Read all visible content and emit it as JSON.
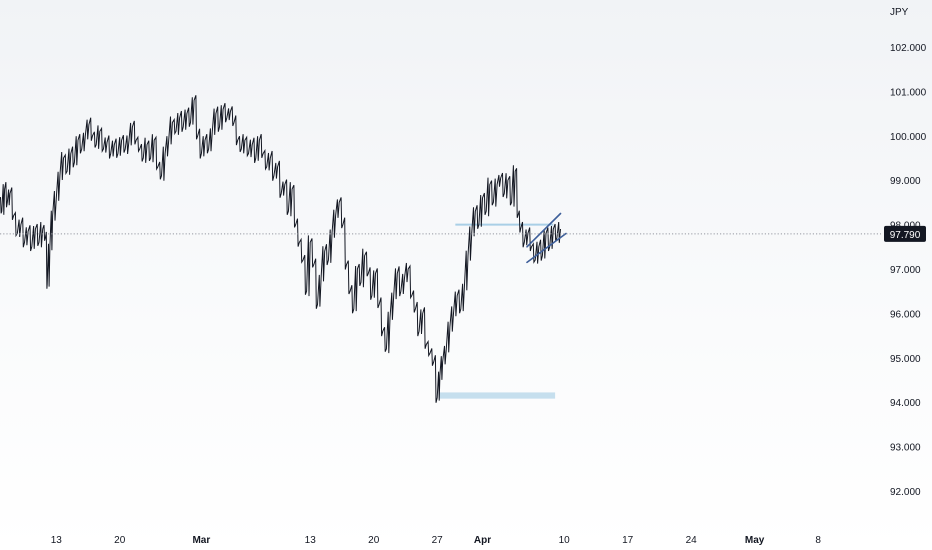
{
  "chart_data": {
    "type": "line",
    "currency": "JPY",
    "y_ticks": [
      "102.000",
      "101.000",
      "100.000",
      "99.000",
      "98.000",
      "97.000",
      "96.000",
      "95.000",
      "94.000",
      "93.000",
      "92.000"
    ],
    "ylim": [
      91.2,
      103.6
    ],
    "x_ticks": [
      {
        "label": "13",
        "day": 5
      },
      {
        "label": "20",
        "day": 12
      },
      {
        "label": "Mar",
        "day": 21,
        "bold": true
      },
      {
        "label": "13",
        "day": 33
      },
      {
        "label": "20",
        "day": 40
      },
      {
        "label": "27",
        "day": 47
      },
      {
        "label": "Apr",
        "day": 52,
        "bold": true
      },
      {
        "label": "10",
        "day": 61
      },
      {
        "label": "17",
        "day": 68
      },
      {
        "label": "24",
        "day": 75
      },
      {
        "label": "May",
        "day": 82,
        "bold": true
      },
      {
        "label": "8",
        "day": 89
      }
    ],
    "xlim": [
      -2.5,
      91.5
    ],
    "current_price": "97.790",
    "current_value": 97.79,
    "series": [
      {
        "points": [
          [
            -2.5,
            96.6
          ],
          [
            -2.2,
            96.3
          ],
          [
            -2.0,
            96.05
          ],
          [
            -1.8,
            97.2
          ],
          [
            -1.6,
            97.9
          ],
          [
            -1.3,
            98.55
          ],
          [
            -1.0,
            98.3
          ],
          [
            -0.7,
            98.8
          ],
          [
            -0.4,
            98.5
          ],
          [
            -0.1,
            98.7
          ],
          [
            0.3,
            98.2
          ],
          [
            0.7,
            97.8
          ],
          [
            1.1,
            98.0
          ],
          [
            1.5,
            97.6
          ],
          [
            1.9,
            97.85
          ],
          [
            2.3,
            97.5
          ],
          [
            2.7,
            97.9
          ],
          [
            3.1,
            97.6
          ],
          [
            3.5,
            97.9
          ],
          [
            3.8,
            97.7
          ],
          [
            4.0,
            96.65
          ],
          [
            4.3,
            97.5
          ],
          [
            4.6,
            98.2
          ],
          [
            5.0,
            98.6
          ],
          [
            5.4,
            99.1
          ],
          [
            5.8,
            99.5
          ],
          [
            6.2,
            99.2
          ],
          [
            6.6,
            99.6
          ],
          [
            7.0,
            99.4
          ],
          [
            7.4,
            99.9
          ],
          [
            7.8,
            99.7
          ],
          [
            8.2,
            100.0
          ],
          [
            8.6,
            100.25
          ],
          [
            9.0,
            100.0
          ],
          [
            9.4,
            99.8
          ],
          [
            9.8,
            100.1
          ],
          [
            10.2,
            99.7
          ],
          [
            10.6,
            99.85
          ],
          [
            11.0,
            99.6
          ],
          [
            11.4,
            99.8
          ],
          [
            11.8,
            99.6
          ],
          [
            12.2,
            99.9
          ],
          [
            12.6,
            99.7
          ],
          [
            13.0,
            99.85
          ],
          [
            13.4,
            100.2
          ],
          [
            13.8,
            99.9
          ],
          [
            14.2,
            99.7
          ],
          [
            14.6,
            99.5
          ],
          [
            15.0,
            99.8
          ],
          [
            15.4,
            99.5
          ],
          [
            15.8,
            99.9
          ],
          [
            16.2,
            99.3
          ],
          [
            16.6,
            99.1
          ],
          [
            17.0,
            99.6
          ],
          [
            17.4,
            99.9
          ],
          [
            17.8,
            100.3
          ],
          [
            18.2,
            100.1
          ],
          [
            18.6,
            100.4
          ],
          [
            19.0,
            100.2
          ],
          [
            19.4,
            100.5
          ],
          [
            19.8,
            100.3
          ],
          [
            20.2,
            100.8
          ],
          [
            20.6,
            100.0
          ],
          [
            21.0,
            99.6
          ],
          [
            21.4,
            99.9
          ],
          [
            21.8,
            99.7
          ],
          [
            22.2,
            100.1
          ],
          [
            22.6,
            100.5
          ],
          [
            23.0,
            100.2
          ],
          [
            23.4,
            100.6
          ],
          [
            23.8,
            100.4
          ],
          [
            24.2,
            100.55
          ],
          [
            24.6,
            100.3
          ],
          [
            25.0,
            99.9
          ],
          [
            25.4,
            99.7
          ],
          [
            25.8,
            99.9
          ],
          [
            26.2,
            99.6
          ],
          [
            26.6,
            99.8
          ],
          [
            27.0,
            99.5
          ],
          [
            27.4,
            99.9
          ],
          [
            27.8,
            99.6
          ],
          [
            28.2,
            99.3
          ],
          [
            28.6,
            99.5
          ],
          [
            29.0,
            99.1
          ],
          [
            29.4,
            99.3
          ],
          [
            29.8,
            98.7
          ],
          [
            30.2,
            98.9
          ],
          [
            30.6,
            98.3
          ],
          [
            31.0,
            98.8
          ],
          [
            31.4,
            98.0
          ],
          [
            31.8,
            97.6
          ],
          [
            32.2,
            97.2
          ],
          [
            32.6,
            96.5
          ],
          [
            33.0,
            97.6
          ],
          [
            33.4,
            97.1
          ],
          [
            33.8,
            96.2
          ],
          [
            34.2,
            96.8
          ],
          [
            34.6,
            97.4
          ],
          [
            35.0,
            97.2
          ],
          [
            35.4,
            97.8
          ],
          [
            35.8,
            98.2
          ],
          [
            36.2,
            98.5
          ],
          [
            36.6,
            98.0
          ],
          [
            37.0,
            97.1
          ],
          [
            37.4,
            96.5
          ],
          [
            37.8,
            96.1
          ],
          [
            38.2,
            97.0
          ],
          [
            38.6,
            96.7
          ],
          [
            39.0,
            97.3
          ],
          [
            39.4,
            96.9
          ],
          [
            39.8,
            96.4
          ],
          [
            40.2,
            96.9
          ],
          [
            40.6,
            96.2
          ],
          [
            41.0,
            95.6
          ],
          [
            41.4,
            95.2
          ],
          [
            41.8,
            95.9
          ],
          [
            42.2,
            96.4
          ],
          [
            42.6,
            96.9
          ],
          [
            43.0,
            96.5
          ],
          [
            43.4,
            96.8
          ],
          [
            43.8,
            97.0
          ],
          [
            44.2,
            96.4
          ],
          [
            44.6,
            96.1
          ],
          [
            45.0,
            95.6
          ],
          [
            45.4,
            96.0
          ],
          [
            45.8,
            95.3
          ],
          [
            46.2,
            95.1
          ],
          [
            46.6,
            94.9
          ],
          [
            47.0,
            94.1
          ],
          [
            47.3,
            94.6
          ],
          [
            47.6,
            94.9
          ],
          [
            48.0,
            95.2
          ],
          [
            48.4,
            95.7
          ],
          [
            48.8,
            96.0
          ],
          [
            49.2,
            96.4
          ],
          [
            49.6,
            96.1
          ],
          [
            50.0,
            96.6
          ],
          [
            50.4,
            97.3
          ],
          [
            50.8,
            97.8
          ],
          [
            51.2,
            98.3
          ],
          [
            51.6,
            98.0
          ],
          [
            52.0,
            98.6
          ],
          [
            52.4,
            98.3
          ],
          [
            52.8,
            98.9
          ],
          [
            53.2,
            98.5
          ],
          [
            53.6,
            98.9
          ],
          [
            54.0,
            99.05
          ],
          [
            54.4,
            98.7
          ],
          [
            54.8,
            99.0
          ],
          [
            55.2,
            98.5
          ],
          [
            55.6,
            99.2
          ],
          [
            55.9,
            98.2
          ],
          [
            56.2,
            97.9
          ],
          [
            56.6,
            97.6
          ],
          [
            57.0,
            97.8
          ],
          [
            57.4,
            97.5
          ],
          [
            57.8,
            97.2
          ],
          [
            58.2,
            97.5
          ],
          [
            58.6,
            97.3
          ],
          [
            59.0,
            97.8
          ],
          [
            59.4,
            97.5
          ],
          [
            59.8,
            97.9
          ],
          [
            60.2,
            97.7
          ],
          [
            60.6,
            97.9
          ]
        ]
      }
    ],
    "annotations": {
      "resistance_band": {
        "x1": 49.0,
        "x2": 59.8,
        "y": 98.0
      },
      "support_band": {
        "x1": 47.2,
        "x2": 60.0,
        "y_top": 94.22,
        "y_bottom": 94.08
      },
      "wedge_upper": {
        "x1": 56.9,
        "y1": 97.5,
        "x2": 60.6,
        "y2": 98.25
      },
      "wedge_lower": {
        "x1": 56.9,
        "y1": 97.15,
        "x2": 61.2,
        "y2": 97.8
      }
    },
    "colors": {
      "line": "#131722",
      "band": "#a9cfe6",
      "trend": "#3e5f9a",
      "price_tag": "#131722",
      "dotted": "#9598a1"
    }
  }
}
